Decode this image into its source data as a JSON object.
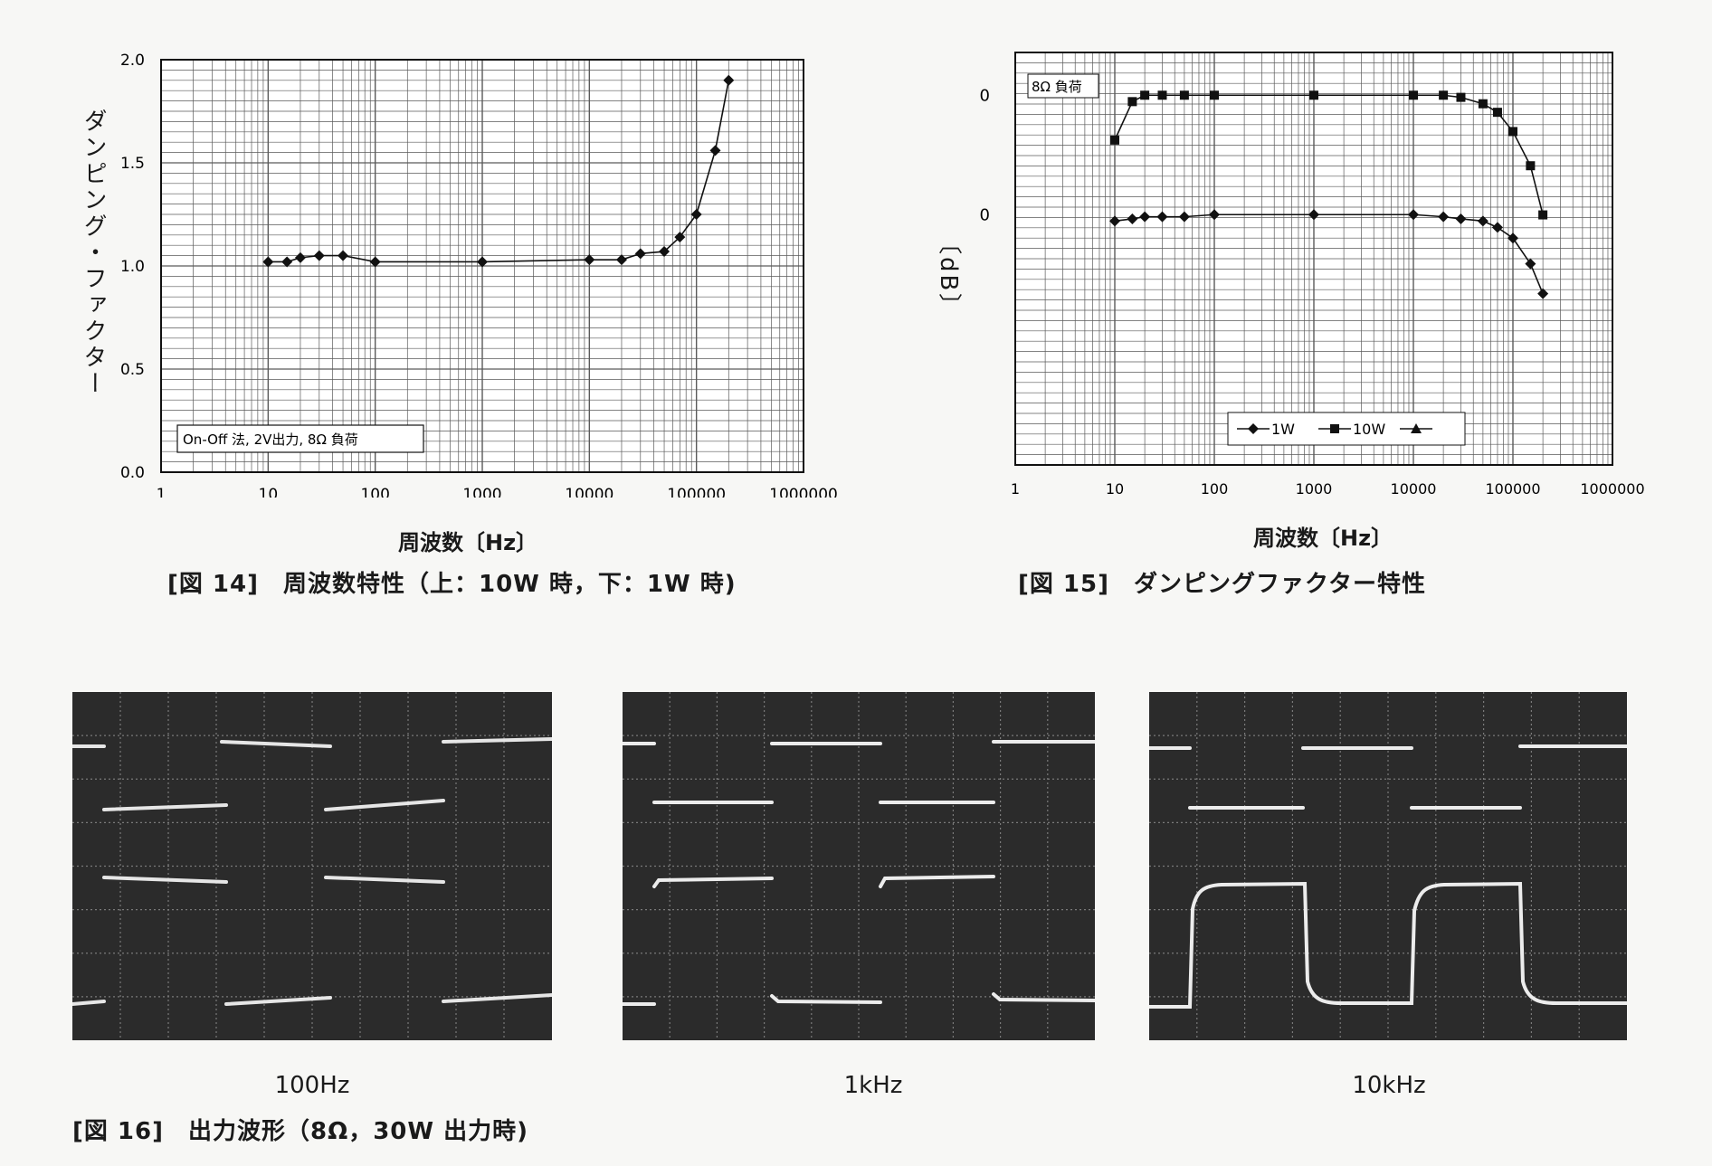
{
  "chart_data": [
    {
      "type": "line",
      "caption": "[図 14]　周波数特性（上：10W 時，下：1W 時)",
      "xlabel": "周波数〔Hz〕",
      "ylabel": "ダンピング・ファクター",
      "xscale": "log",
      "xlim": [
        1,
        1000000
      ],
      "ylim": [
        0,
        2.0
      ],
      "x_ticks": [
        "1",
        "10",
        "100",
        "1000",
        "10000",
        "100000",
        "1000000"
      ],
      "y_ticks": [
        "0.0",
        "0.5",
        "1.0",
        "1.5",
        "2.0"
      ],
      "annotation": "On-Off 法, 2V出力, 8Ω 負荷",
      "series": [
        {
          "marker": "diamond",
          "x": [
            10,
            15,
            20,
            30,
            50,
            100,
            1000,
            10000,
            20000,
            30000,
            50000,
            70000,
            100000,
            150000,
            200000
          ],
          "y": [
            1.02,
            1.02,
            1.04,
            1.05,
            1.05,
            1.02,
            1.02,
            1.03,
            1.03,
            1.06,
            1.07,
            1.14,
            1.25,
            1.56,
            1.9
          ]
        }
      ]
    },
    {
      "type": "line",
      "caption": "[図 15]　ダンピングファクター特性",
      "xlabel": "周波数〔Hz〕",
      "ylabel": "〔dB〕",
      "xscale": "log",
      "xlim": [
        1,
        1000000
      ],
      "x_ticks": [
        "1",
        "10",
        "100",
        "1000",
        "10000",
        "100000",
        "1000000"
      ],
      "y_ticks": [
        "0",
        "0"
      ],
      "annotation": "8Ω 負荷",
      "legend": [
        "1W",
        "10W",
        ""
      ],
      "legend_position": "bottom-right",
      "series": [
        {
          "name": "1W",
          "marker": "diamond",
          "x": [
            10,
            15,
            20,
            30,
            50,
            100,
            1000,
            10000,
            20000,
            30000,
            50000,
            70000,
            100000,
            150000,
            200000
          ],
          "y": [
            -0.3,
            -0.2,
            -0.1,
            -0.1,
            -0.1,
            0.0,
            0.0,
            0.0,
            -0.1,
            -0.2,
            -0.3,
            -0.6,
            -1.1,
            -2.3,
            -3.7
          ]
        },
        {
          "name": "10W",
          "marker": "square",
          "x": [
            10,
            15,
            20,
            30,
            50,
            100,
            1000,
            10000,
            20000,
            30000,
            50000,
            70000,
            100000,
            150000,
            200000
          ],
          "y": [
            -2.1,
            -0.3,
            0.0,
            0.0,
            0.0,
            0.0,
            0.0,
            0.0,
            0.0,
            -0.1,
            -0.4,
            -0.8,
            -1.7,
            -3.3,
            -5.6
          ]
        },
        {
          "name": "",
          "marker": "triangle",
          "x": [],
          "y": []
        }
      ]
    }
  ],
  "scopes": {
    "caption": "[図 16]　出力波形（8Ω，30W 出力時)",
    "panels": [
      {
        "label": "100Hz"
      },
      {
        "label": "1kHz"
      },
      {
        "label": "10kHz"
      }
    ]
  },
  "colors": {
    "ink": "#111111",
    "grid": "#5a5a5a",
    "scope_bg": "#2b2b2b",
    "trace": "#e9e9e9"
  }
}
